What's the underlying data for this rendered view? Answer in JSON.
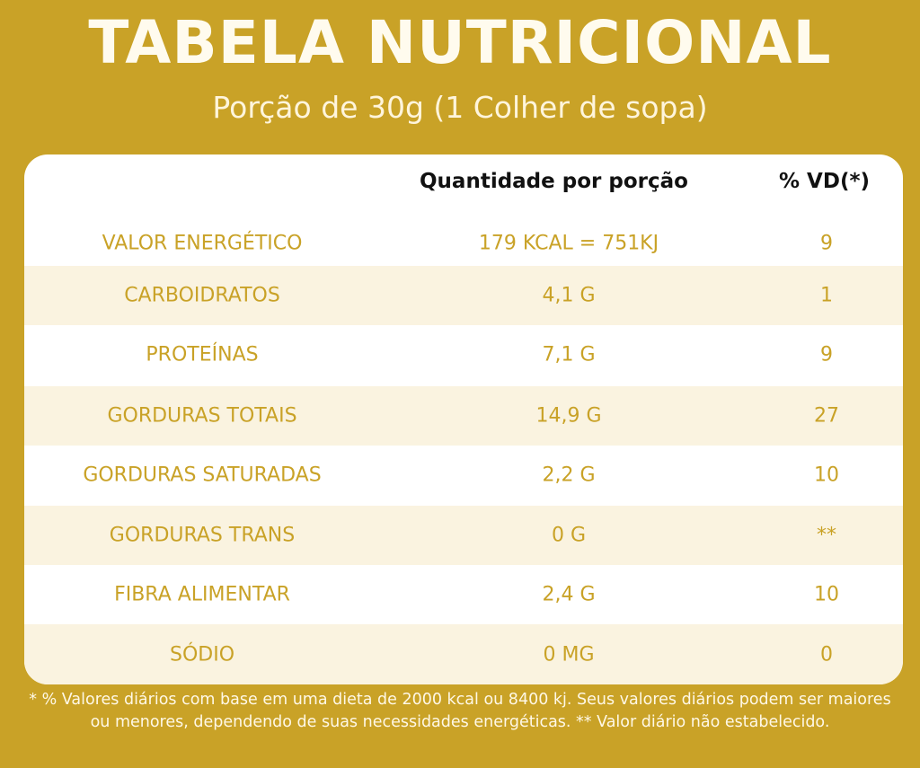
{
  "title": "TABELA NUTRICIONAL",
  "subtitle": "Porção de 30g (1 Colher de sopa)",
  "headers": {
    "quantity": "Quantidade por porção",
    "vd": "% VD(*)"
  },
  "rows": [
    {
      "name": "VALOR ENERGÉTICO",
      "quantity": "179 KCAL = 751KJ",
      "vd": "9"
    },
    {
      "name": "CARBOIDRATOS",
      "quantity": "4,1 G",
      "vd": "1"
    },
    {
      "name": "PROTEÍNAS",
      "quantity": "7,1 G",
      "vd": "9"
    },
    {
      "name": "GORDURAS TOTAIS",
      "quantity": "14,9 G",
      "vd": "27"
    },
    {
      "name": "GORDURAS SATURADAS",
      "quantity": "2,2 G",
      "vd": "10"
    },
    {
      "name": "GORDURAS TRANS",
      "quantity": "0 G",
      "vd": "**"
    },
    {
      "name": "FIBRA ALIMENTAR",
      "quantity": "2,4 G",
      "vd": "10"
    },
    {
      "name": "SÓDIO",
      "quantity": "0 MG",
      "vd": "0"
    }
  ],
  "footnote": "* % Valores diários com base em uma dieta de 2000 kcal ou 8400 kj. Seus valores diários podem ser maiores ou menores, dependendo de suas necessidades energéticas. ** Valor diário não estabelecido.",
  "colors": {
    "background": "#c9a227",
    "card": "#ffffff",
    "row_shade": "#faf3e0",
    "text_gold": "#c9a227"
  }
}
